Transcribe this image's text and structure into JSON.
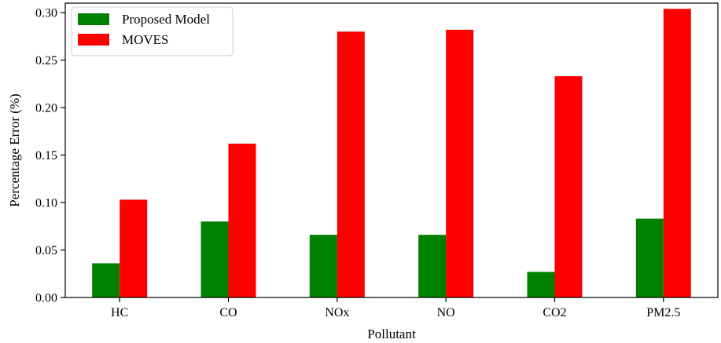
{
  "chart_data": {
    "type": "bar",
    "title": "",
    "xlabel": "Pollutant",
    "ylabel": "Percentage Error (%)",
    "categories": [
      "HC",
      "CO",
      "NOx",
      "NO",
      "CO2",
      "PM2.5"
    ],
    "series": [
      {
        "name": "Proposed Model",
        "color": "#008000",
        "values": [
          0.036,
          0.08,
          0.066,
          0.066,
          0.027,
          0.083
        ]
      },
      {
        "name": "MOVES",
        "color": "#ff0000",
        "values": [
          0.103,
          0.162,
          0.28,
          0.282,
          0.233,
          0.304
        ]
      }
    ],
    "ylim": [
      0,
      0.31
    ],
    "yticks": [
      "0.00",
      "0.05",
      "0.10",
      "0.15",
      "0.20",
      "0.25",
      "0.30"
    ],
    "grid": false,
    "legend_position": "top-left"
  }
}
